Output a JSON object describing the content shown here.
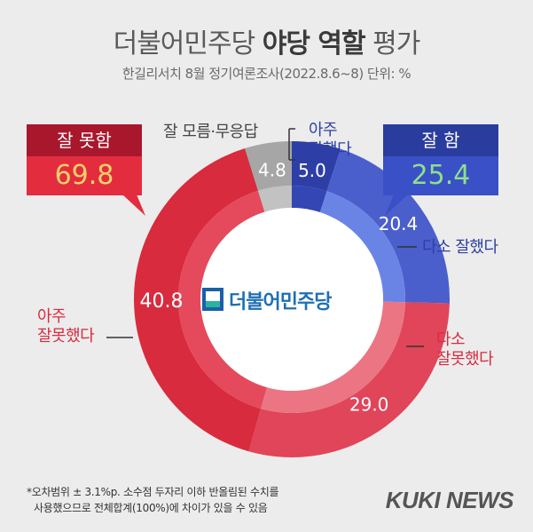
{
  "title_part1": "더불어민주당",
  "title_part2": "야당 역할",
  "title_part3": "평가",
  "subtitle": "한길리서치 8월 정기여론조사(2022.8.6~8) 단위: %",
  "center_logo": "더불어민주당",
  "boxes": {
    "bad": {
      "label": "잘 못함",
      "value": "69.8",
      "head_color": "#a8172c",
      "body_color": "#e32d3e"
    },
    "good": {
      "label": "잘 함",
      "value": "25.4",
      "head_color": "#2a3c9e",
      "body_color": "#3a50c6"
    }
  },
  "labels": {
    "dont_know": "잘 모름·무응답",
    "very_good_1": "아주",
    "very_good_2": "잘했다",
    "somewhat_good": "다소 잘했다",
    "very_bad_1": "아주",
    "very_bad_2": "잘못했다",
    "somewhat_bad_1": "다소",
    "somewhat_bad_2": "잘못했다"
  },
  "chart_data": {
    "type": "pie",
    "title": "더불어민주당 야당 역할 평가",
    "categories": [
      "아주 잘했다",
      "다소 잘했다",
      "다소 잘못했다",
      "아주 잘못했다",
      "잘 모름·무응답"
    ],
    "values": [
      5.0,
      20.4,
      29.0,
      40.8,
      4.8
    ],
    "value_labels": [
      "5.0",
      "20.4",
      "29.0",
      "40.8",
      "4.8"
    ],
    "colors": [
      "#2d3fa6",
      "#4a5fcc",
      "#e0455a",
      "#d92b3e",
      "#a6a6a6"
    ],
    "inner_colors": [
      "#3346b4",
      "#6a84e6",
      "#ec7583",
      "#e44a5b",
      "#c2c2c2"
    ],
    "groups": [
      {
        "name": "잘 함",
        "value": 25.4
      },
      {
        "name": "잘 못함",
        "value": 69.8
      }
    ]
  },
  "footnote_line1": "*오차범위 ± 3.1%p. 소수점 두자리 이하 반올림된 수치를",
  "footnote_line2": "사용했으므로 전체합계(100%)에 차이가 있을 수 있음",
  "brand": "KUKI NEWS"
}
